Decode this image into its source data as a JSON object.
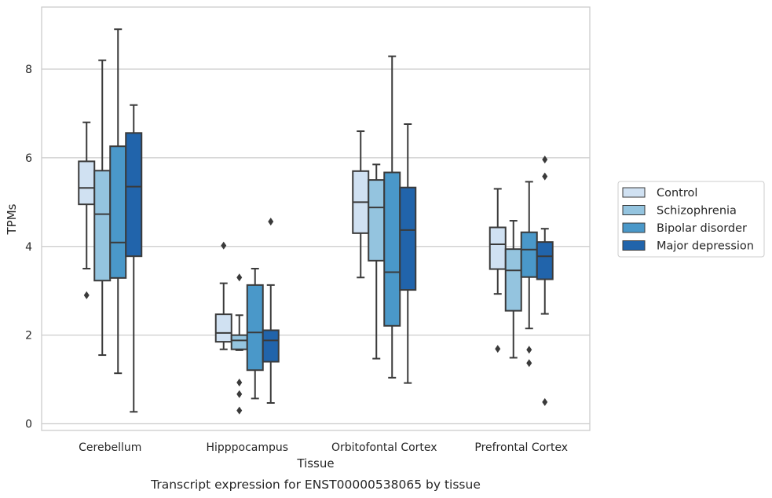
{
  "chart_data": {
    "type": "box",
    "caption": "Transcript expression for ENST00000538065 by tissue",
    "xlabel": "Tissue",
    "ylabel": "TPMs",
    "ylim": [
      -0.15,
      9.4
    ],
    "yticks": [
      0,
      2,
      4,
      6,
      8
    ],
    "grid": "horizontal",
    "legend_position": "right",
    "categories": [
      "Cerebellum",
      "Hipppocampus",
      "Orbitofontal Cortex",
      "Prefrontal Cortex"
    ],
    "series": [
      {
        "name": "Control",
        "color": "#d0e1f2",
        "boxes": [
          {
            "whislo": 3.5,
            "q1": 4.95,
            "med": 5.32,
            "q3": 5.92,
            "whishi": 6.8,
            "fliers": [
              2.9
            ]
          },
          {
            "whislo": 1.68,
            "q1": 1.85,
            "med": 2.05,
            "q3": 2.47,
            "whishi": 3.17,
            "fliers": [
              4.02
            ]
          },
          {
            "whislo": 3.3,
            "q1": 4.3,
            "med": 5.0,
            "q3": 5.7,
            "whishi": 6.6,
            "fliers": []
          },
          {
            "whislo": 2.93,
            "q1": 3.49,
            "med": 4.05,
            "q3": 4.43,
            "whishi": 5.3,
            "fliers": [
              1.69
            ]
          }
        ]
      },
      {
        "name": "Schizophrenia",
        "color": "#94c4df",
        "boxes": [
          {
            "whislo": 1.55,
            "q1": 3.23,
            "med": 4.73,
            "q3": 5.71,
            "whishi": 8.2,
            "fliers": []
          },
          {
            "whislo": 1.66,
            "q1": 1.68,
            "med": 1.88,
            "q3": 2.0,
            "whishi": 2.45,
            "fliers": [
              3.3,
              0.93,
              0.67,
              0.3
            ]
          },
          {
            "whislo": 1.47,
            "q1": 3.68,
            "med": 4.88,
            "q3": 5.5,
            "whishi": 5.85,
            "fliers": []
          },
          {
            "whislo": 1.49,
            "q1": 2.55,
            "med": 3.46,
            "q3": 3.94,
            "whishi": 4.58,
            "fliers": []
          }
        ]
      },
      {
        "name": "Bipolar disorder",
        "color": "#4a98c9",
        "boxes": [
          {
            "whislo": 1.14,
            "q1": 3.29,
            "med": 4.09,
            "q3": 6.26,
            "whishi": 8.9,
            "fliers": []
          },
          {
            "whislo": 0.57,
            "q1": 1.21,
            "med": 2.06,
            "q3": 3.13,
            "whishi": 3.5,
            "fliers": []
          },
          {
            "whislo": 1.04,
            "q1": 2.21,
            "med": 3.42,
            "q3": 5.67,
            "whishi": 8.29,
            "fliers": []
          },
          {
            "whislo": 2.15,
            "q1": 3.31,
            "med": 3.93,
            "q3": 4.32,
            "whishi": 5.46,
            "fliers": [
              1.67,
              1.37
            ]
          }
        ]
      },
      {
        "name": "Major depression",
        "color": "#2164ab",
        "boxes": [
          {
            "whislo": 0.27,
            "q1": 3.78,
            "med": 5.35,
            "q3": 6.56,
            "whishi": 7.19,
            "fliers": []
          },
          {
            "whislo": 0.47,
            "q1": 1.4,
            "med": 1.88,
            "q3": 2.11,
            "whishi": 3.13,
            "fliers": [
              4.56
            ]
          },
          {
            "whislo": 0.92,
            "q1": 3.02,
            "med": 4.37,
            "q3": 5.33,
            "whishi": 6.76,
            "fliers": []
          },
          {
            "whislo": 2.48,
            "q1": 3.26,
            "med": 3.78,
            "q3": 4.1,
            "whishi": 4.4,
            "fliers": [
              5.96,
              5.58,
              0.49
            ]
          }
        ]
      }
    ]
  }
}
